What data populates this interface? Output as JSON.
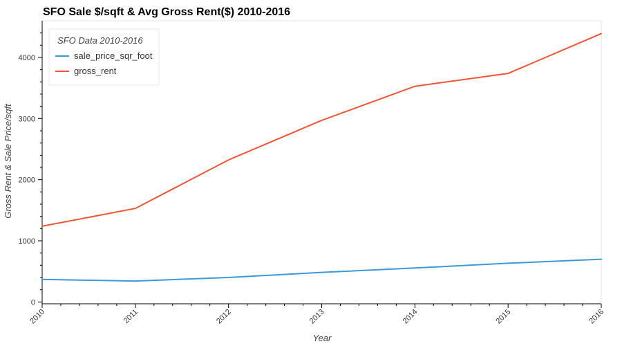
{
  "chart_data": {
    "type": "line",
    "title": "SFO Sale $/sqft & Avg Gross Rent($) 2010-2016",
    "xlabel": "Year",
    "ylabel": "Gross Rent & Sale Price/sqft",
    "x": [
      "2010",
      "2011",
      "2012",
      "2013",
      "2014",
      "2015",
      "2016"
    ],
    "xlim": [
      2010,
      2016
    ],
    "ylim": [
      -30,
      4600
    ],
    "yticks": [
      "0",
      "1000",
      "2000",
      "3000",
      "4000"
    ],
    "legend": {
      "title": "SFO Data 2010-2016",
      "position": "top-left"
    },
    "grid": false,
    "series": [
      {
        "name": "sale_price_sqr_foot",
        "color": "#3a9ad9",
        "values": [
          369,
          342,
          400,
          484,
          555,
          633,
          699
        ]
      },
      {
        "name": "gross_rent",
        "color": "#f05535",
        "values": [
          1239,
          1530,
          2324,
          2971,
          3528,
          3739,
          4390
        ]
      }
    ]
  }
}
